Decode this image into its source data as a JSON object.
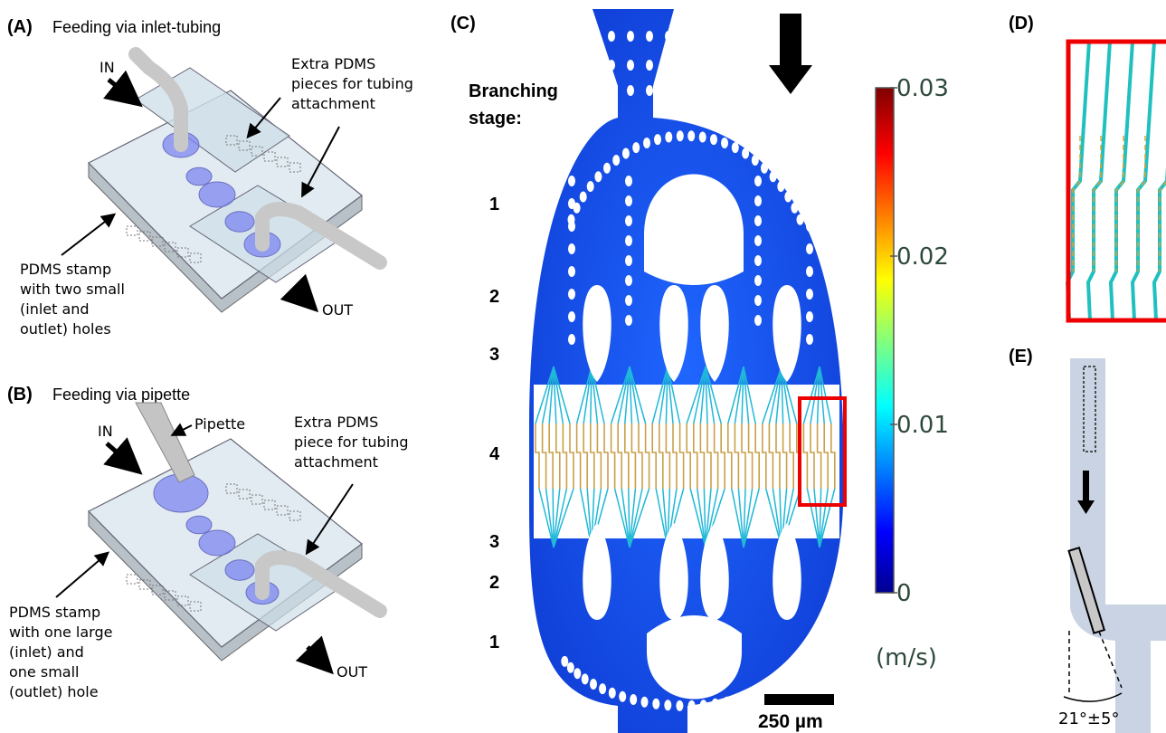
{
  "panels": {
    "a": {
      "label": "(A)",
      "title": "Feeding via inlet-tubing",
      "in": "IN",
      "out": "OUT",
      "extra": [
        "Extra PDMS",
        "pieces for tubing",
        "attachment"
      ],
      "stamp": [
        "PDMS stamp",
        "with two small",
        "(inlet and",
        "outlet) holes"
      ]
    },
    "b": {
      "label": "(B)",
      "title": "Feeding via pipette",
      "in": "IN",
      "pipette": "Pipette",
      "out": "OUT",
      "extra": [
        "Extra PDMS",
        "piece for tubing",
        "attachment"
      ],
      "stamp": [
        "PDMS stamp",
        "with one large",
        "(inlet) and",
        "one small",
        "(outlet) hole"
      ]
    },
    "c": {
      "label": "(C)",
      "stage_title": [
        "Branching",
        "stage:"
      ],
      "stages": [
        "1",
        "2",
        "3",
        "4",
        "3",
        "2",
        "1"
      ],
      "colorbar": {
        "ticks": [
          0.03,
          0.02,
          0.01,
          0
        ],
        "unit": "(m/s)"
      },
      "scale_bar": "250 µm"
    },
    "d": {
      "label": "(D)"
    },
    "e": {
      "label": "(E)",
      "angle": "21°±5°"
    }
  }
}
